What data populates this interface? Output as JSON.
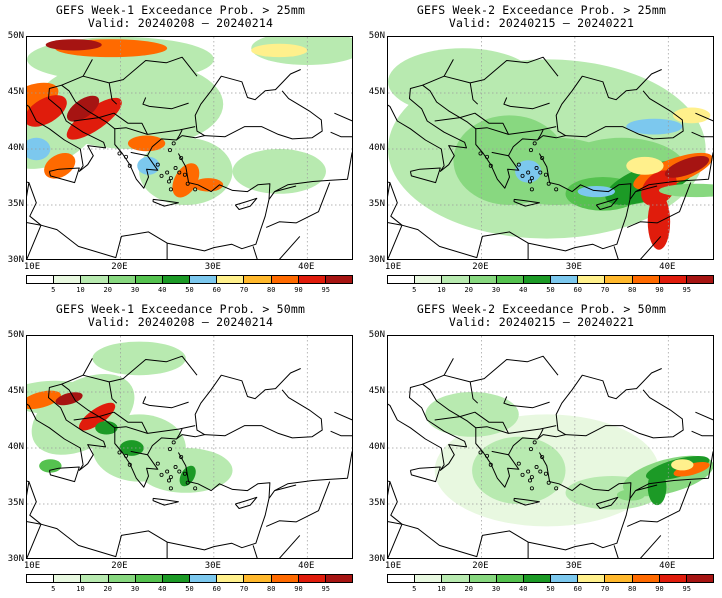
{
  "panels": [
    {
      "title": "GEFS Week-1 Exceedance Prob. > 25mm",
      "valid": "Valid: 20240208 – 20240214"
    },
    {
      "title": "GEFS Week-2 Exceedance Prob. > 25mm",
      "valid": "Valid: 20240215 – 20240221"
    },
    {
      "title": "GEFS Week-1 Exceedance Prob. > 50mm",
      "valid": "Valid: 20240208 – 20240214"
    },
    {
      "title": "GEFS Week-2 Exceedance Prob. > 50mm",
      "valid": "Valid: 20240215 – 20240221"
    }
  ],
  "axes": {
    "lat_labels": [
      "50N",
      "45N",
      "40N",
      "35N",
      "30N"
    ],
    "lon_labels": [
      "10E",
      "20E",
      "30E",
      "40E"
    ]
  },
  "colorbar": {
    "labels": [
      "5",
      "10",
      "20",
      "30",
      "40",
      "50",
      "60",
      "70",
      "80",
      "90",
      "95"
    ],
    "colors": [
      "#ffffff",
      "#e8f8e0",
      "#b8eab0",
      "#88d880",
      "#55c24f",
      "#1c9a26",
      "#7cc8ee",
      "#fff08c",
      "#ffb82c",
      "#ff6a00",
      "#e01c0c",
      "#a61412"
    ]
  }
}
